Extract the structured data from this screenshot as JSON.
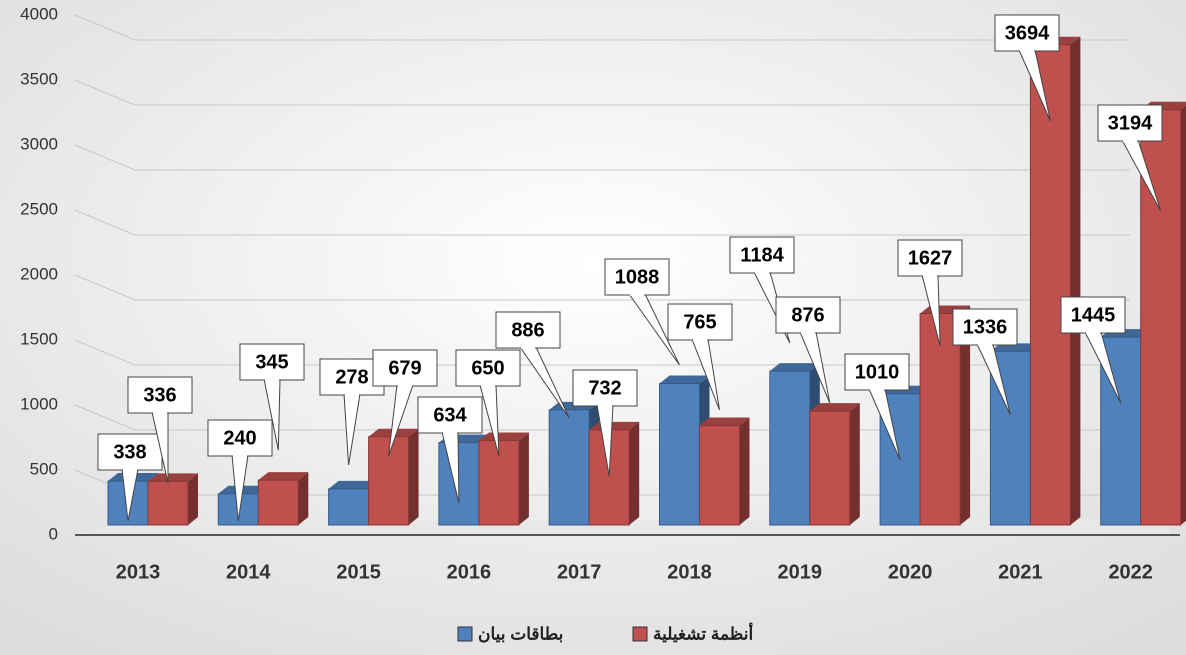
{
  "chart_data": {
    "type": "bar3d",
    "categories": [
      "2013",
      "2014",
      "2015",
      "2016",
      "2017",
      "2018",
      "2019",
      "2020",
      "2021",
      "2022"
    ],
    "series": [
      {
        "name": "بطاقات بيان",
        "color": "#4f81bd",
        "values": [
          338,
          240,
          278,
          634,
          886,
          1088,
          1184,
          1010,
          1336,
          1445
        ]
      },
      {
        "name": "أنظمة تشغيلية",
        "color": "#c0504d",
        "values": [
          336,
          345,
          679,
          650,
          732,
          765,
          876,
          1627,
          3694,
          3194
        ]
      }
    ],
    "ylim": [
      0,
      4000
    ],
    "yticks": [
      0,
      500,
      1000,
      1500,
      2000,
      2500,
      3000,
      3500,
      4000
    ],
    "grid": true,
    "legend": "bottom"
  }
}
